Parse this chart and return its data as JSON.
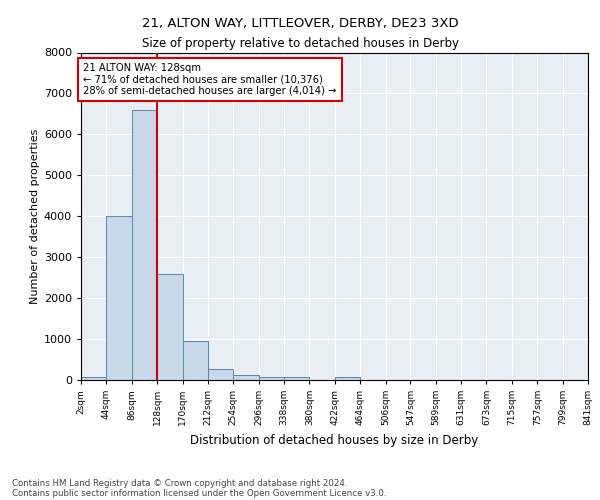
{
  "title_line1": "21, ALTON WAY, LITTLEOVER, DERBY, DE23 3XD",
  "title_line2": "Size of property relative to detached houses in Derby",
  "xlabel": "Distribution of detached houses by size in Derby",
  "ylabel": "Number of detached properties",
  "footnote1": "Contains HM Land Registry data © Crown copyright and database right 2024.",
  "footnote2": "Contains public sector information licensed under the Open Government Licence v3.0.",
  "annotation_line1": "21 ALTON WAY: 128sqm",
  "annotation_line2": "← 71% of detached houses are smaller (10,376)",
  "annotation_line3": "28% of semi-detached houses are larger (4,014) →",
  "property_size": 128,
  "bin_edges": [
    2,
    44,
    86,
    128,
    170,
    212,
    254,
    296,
    338,
    380,
    422,
    464,
    506,
    547,
    589,
    631,
    673,
    715,
    757,
    799,
    841
  ],
  "bin_labels": [
    "2sqm",
    "44sqm",
    "86sqm",
    "128sqm",
    "170sqm",
    "212sqm",
    "254sqm",
    "296sqm",
    "338sqm",
    "380sqm",
    "422sqm",
    "464sqm",
    "506sqm",
    "547sqm",
    "589sqm",
    "631sqm",
    "673sqm",
    "715sqm",
    "757sqm",
    "799sqm",
    "841sqm"
  ],
  "bar_heights": [
    80,
    4000,
    6600,
    2600,
    950,
    280,
    120,
    70,
    70,
    0,
    70,
    0,
    0,
    0,
    0,
    0,
    0,
    0,
    0,
    0
  ],
  "bar_color": "#c8d8e8",
  "bar_edge_color": "#5588aa",
  "marker_color": "#cc0000",
  "background_color": "#e8eef4",
  "ylim": [
    0,
    8000
  ],
  "yticks": [
    0,
    1000,
    2000,
    3000,
    4000,
    5000,
    6000,
    7000,
    8000
  ]
}
